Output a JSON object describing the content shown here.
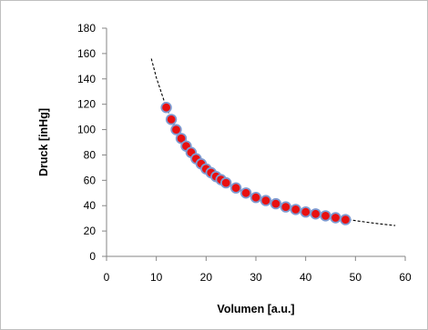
{
  "chart_data": {
    "type": "scatter",
    "title": "",
    "xlabel": "Volumen [a.u.]",
    "ylabel": "Druck [inHg]",
    "xlim": [
      0,
      60
    ],
    "ylim": [
      0,
      180
    ],
    "x_ticks": [
      "0",
      "10",
      "20",
      "30",
      "40",
      "50",
      "60"
    ],
    "y_ticks": [
      "0",
      "20",
      "40",
      "60",
      "80",
      "100",
      "120",
      "140",
      "160",
      "180"
    ],
    "grid": false,
    "legend": "none",
    "series": [
      {
        "kind": "points",
        "marker": "circle",
        "fill_color": "#e81010",
        "edge_color": "#7f9bd1",
        "x": [
          12,
          13,
          14,
          15,
          16,
          17,
          18,
          19,
          20,
          21,
          22,
          23,
          24,
          26,
          28,
          30,
          32,
          34,
          36,
          38,
          40,
          42,
          44,
          46,
          48
        ],
        "y": [
          117.5,
          108,
          100,
          93,
          87,
          82,
          77,
          73,
          69,
          66,
          63,
          60.5,
          58,
          54,
          50,
          46.5,
          44,
          41.5,
          39,
          37,
          35,
          33.5,
          32,
          30.5,
          29
        ]
      },
      {
        "kind": "fit-line",
        "line_style": "dashed",
        "color": "#000000",
        "x": [
          9,
          10,
          12,
          14,
          16,
          18,
          20,
          22,
          24,
          26,
          28,
          30,
          34,
          38,
          42,
          46,
          50,
          54,
          58
        ],
        "y": [
          156,
          141,
          117.5,
          100,
          87.5,
          78,
          70,
          64,
          58.5,
          54,
          50,
          47,
          41.4,
          37,
          33.5,
          30.6,
          28.2,
          26,
          24.3
        ]
      }
    ]
  }
}
